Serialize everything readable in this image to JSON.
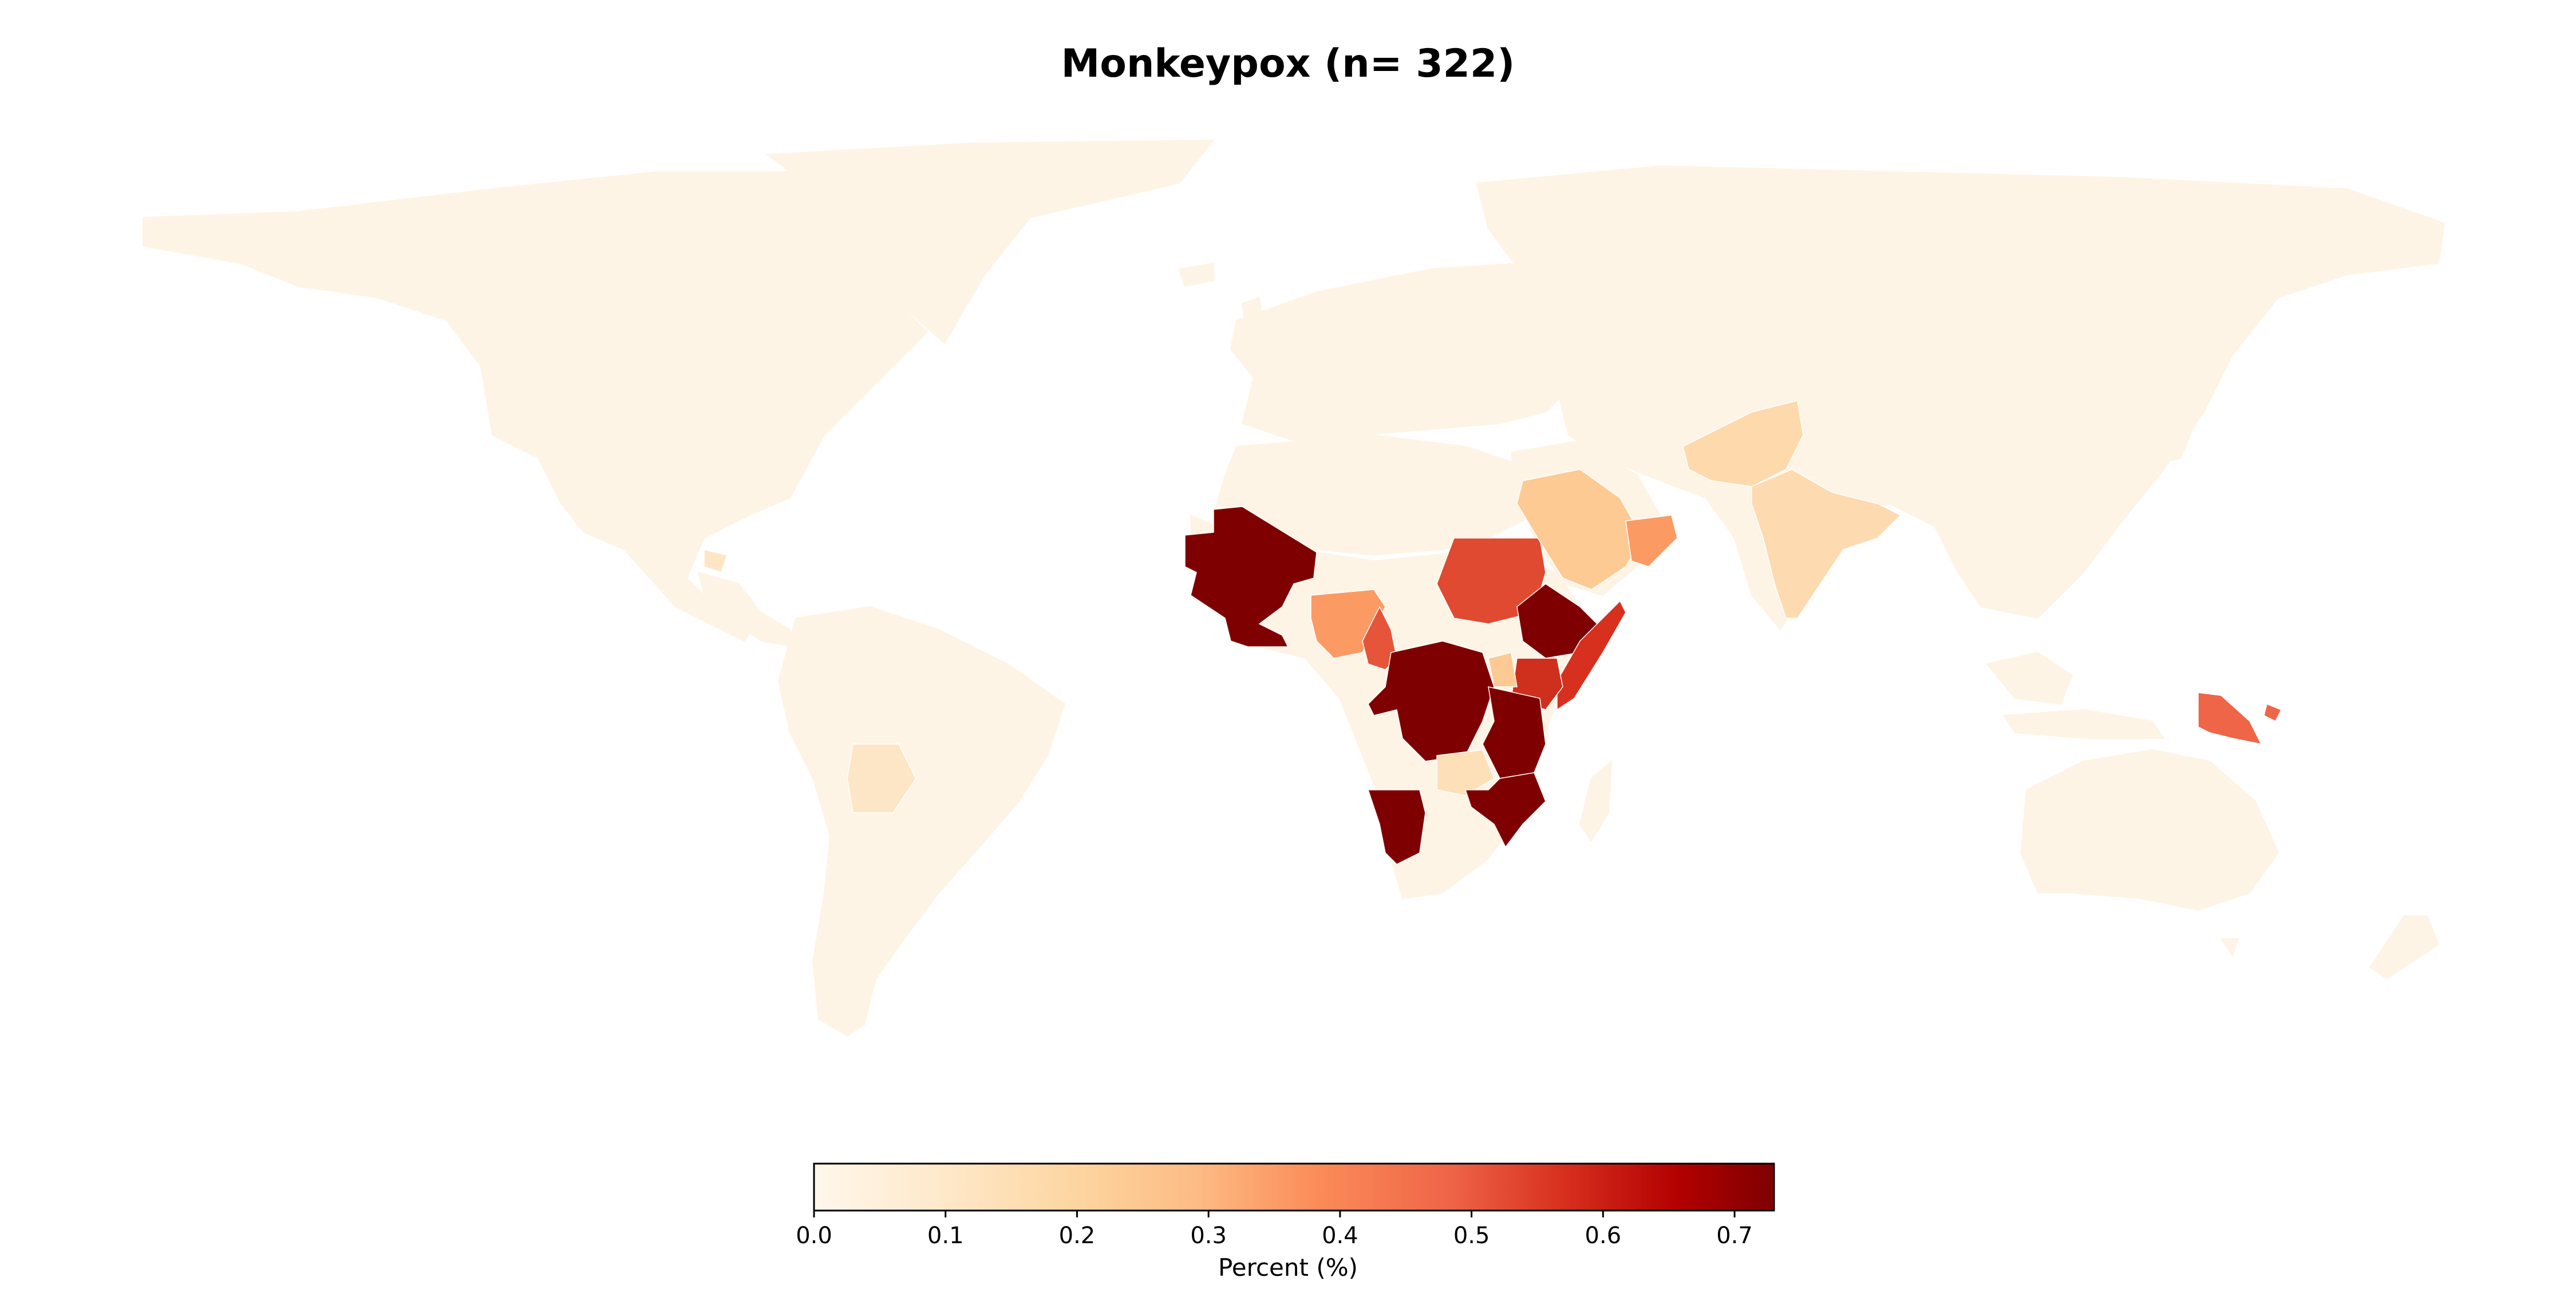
{
  "title": "Monkeypox (n= 322)",
  "colorbar": {
    "label": "Percent (%)",
    "ticks": [
      "0.0",
      "0.1",
      "0.2",
      "0.3",
      "0.4",
      "0.5",
      "0.6",
      "0.7"
    ],
    "range": [
      0,
      0.73
    ],
    "colormap": "OrRd",
    "stops": [
      "#fff7ec",
      "#fee8c8",
      "#fdd49e",
      "#fdbb84",
      "#fc8d59",
      "#ef6548",
      "#d7301f",
      "#b30000",
      "#7f0000"
    ]
  },
  "colors": {
    "zero": "#fef4e6",
    "low": "#fdca94",
    "mid_low": "#fc9a64",
    "mid": "#e6553a",
    "mid_high": "#cf2f1d",
    "high": "#7f0000"
  }
}
